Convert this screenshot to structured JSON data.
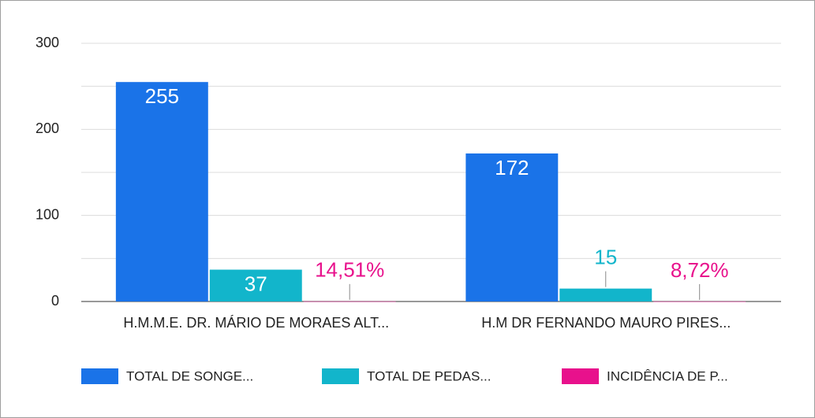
{
  "chart_data": {
    "type": "bar",
    "categories": [
      "H.M.M.E. DR. MÁRIO DE MORAES ALT...",
      "H.M DR FERNANDO MAURO PIRES..."
    ],
    "series": [
      {
        "name": "TOTAL DE SONGE...",
        "color": "#1a73e8",
        "values": [
          255,
          172
        ]
      },
      {
        "name": "TOTAL DE PEDAS...",
        "color": "#12b5cb",
        "values": [
          37,
          15
        ]
      },
      {
        "name": "INCIDÊNCIA DE P...",
        "color": "#e8118c",
        "values": [
          0.1451,
          0.0872
        ],
        "value_labels": [
          "14,51%",
          "8,72%"
        ]
      }
    ],
    "ylim": [
      0,
      300
    ],
    "yticks": [
      0,
      100,
      200,
      300
    ],
    "minor_yticks": [
      50,
      150,
      250
    ],
    "grid": true,
    "legend": "bottom"
  }
}
